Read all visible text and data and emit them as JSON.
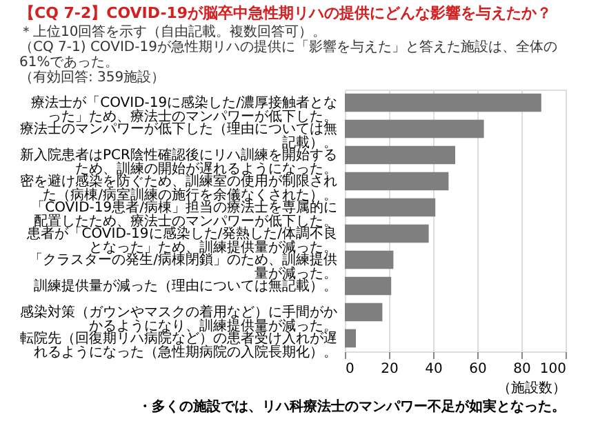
{
  "chart_data": {
    "type": "bar",
    "orientation": "horizontal",
    "title": "【CQ 7-2】COVID-19が脳卒中急性期リハの提供にどんな影響を与えたか？",
    "subtitle": "（CQ 7-1) COVID-19が急性期リハの提供に「影響を与えた」と答えた施設は、全体の 61%であった。",
    "annotations": [
      "＊上位10回答を示す（自由記載。複数回答可）。",
      "（有効回答: 359施設）",
      "・多くの施設では、リハ科療法士のマンパワー不足が如実となった。"
    ],
    "xlabel": "（施設数）",
    "categories": [
      "療法士が「COVID-19に感染した/濃厚接触者となった」ため、療法士のマンパワーが低下した。",
      "療法士のマンパワーが低下した（理由については無記載）。",
      "新入院患者はPCR陰性確認後にリハ訓練を開始するため、訓練の開始が遅れるようになった。",
      "密を避け感染を防ぐため、訓練室の使用が制限された（病棟/病室訓練の施行を余儀なくされた）。",
      "「COVID-19患者/病棟」担当の療法士を専属的に配置したため、療法士のマンパワーが低下した。",
      "患者が「COVID-19に感染した/発熱した/体調不良となった」ため、訓練提供量が減った。",
      "「クラスターの発生/病棟閉鎖」のため、訓練提供量が減った。",
      "訓練提供量が減った（理由については無記載）。",
      "感染対策（ガウンやマスクの着用など）に手間がかかるようになり、訓練提供量が減った。",
      "転院先（回復期リハ病院など）の患者受け入れが遅れるようになった（急性期病院の入院長期化）。"
    ],
    "values": [
      89,
      63,
      50,
      47,
      41,
      38,
      22,
      21,
      17,
      5
    ],
    "color": "#7f7f7f",
    "xlim": [
      0,
      100
    ],
    "xticks": [
      0,
      20,
      40,
      60,
      80,
      100
    ],
    "grid": "x"
  }
}
